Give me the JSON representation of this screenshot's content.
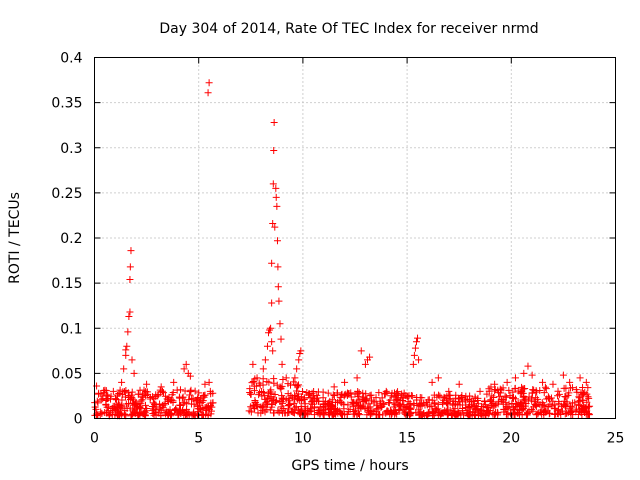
{
  "chart_data": {
    "type": "scatter",
    "title": "Day 304 of 2014, Rate Of TEC Index for receiver nrmd",
    "xlabel": "GPS time / hours",
    "ylabel": "ROTI / TECUs",
    "xlim": [
      0,
      25
    ],
    "ylim": [
      0,
      0.4
    ],
    "grid": true,
    "marker": "+",
    "color": "#ff0000",
    "x_ticks": [
      0,
      5,
      10,
      15,
      20,
      25
    ],
    "y_ticks": [
      0,
      0.05,
      0.1,
      0.15,
      0.2,
      0.25,
      0.3,
      0.35,
      0.4
    ],
    "x_tick_labels": [
      "0",
      "5",
      "10",
      "15",
      "20",
      "25"
    ],
    "y_tick_labels": [
      "0",
      "0.05",
      "0.1",
      "0.15",
      "0.2",
      "0.25",
      "0.3",
      "0.35",
      "0.4"
    ],
    "data_gaps_hours": [
      [
        5.7,
        7.4
      ]
    ],
    "series": [
      {
        "name": "ROTI",
        "points": [
          [
            0.1,
            0.036
          ],
          [
            0.2,
            0.028
          ],
          [
            0.4,
            0.025
          ],
          [
            0.6,
            0.022
          ],
          [
            1.3,
            0.04
          ],
          [
            1.4,
            0.055
          ],
          [
            1.5,
            0.07
          ],
          [
            1.5,
            0.076
          ],
          [
            1.55,
            0.08
          ],
          [
            1.6,
            0.096
          ],
          [
            1.65,
            0.113
          ],
          [
            1.7,
            0.118
          ],
          [
            1.7,
            0.154
          ],
          [
            1.72,
            0.168
          ],
          [
            1.75,
            0.186
          ],
          [
            1.8,
            0.065
          ],
          [
            1.9,
            0.05
          ],
          [
            2.5,
            0.038
          ],
          [
            3.2,
            0.035
          ],
          [
            3.8,
            0.04
          ],
          [
            4.3,
            0.055
          ],
          [
            4.4,
            0.06
          ],
          [
            4.5,
            0.05
          ],
          [
            4.6,
            0.047
          ],
          [
            5.3,
            0.038
          ],
          [
            5.5,
            0.04
          ],
          [
            5.45,
            0.361
          ],
          [
            5.5,
            0.372
          ],
          [
            7.6,
            0.06
          ],
          [
            7.8,
            0.045
          ],
          [
            8.1,
            0.055
          ],
          [
            8.2,
            0.065
          ],
          [
            8.3,
            0.08
          ],
          [
            8.35,
            0.095
          ],
          [
            8.4,
            0.098
          ],
          [
            8.45,
            0.1
          ],
          [
            8.5,
            0.085
          ],
          [
            8.55,
            0.075
          ],
          [
            8.5,
            0.128
          ],
          [
            8.5,
            0.172
          ],
          [
            8.55,
            0.216
          ],
          [
            8.58,
            0.26
          ],
          [
            8.6,
            0.297
          ],
          [
            8.62,
            0.328
          ],
          [
            8.65,
            0.212
          ],
          [
            8.7,
            0.255
          ],
          [
            8.72,
            0.245
          ],
          [
            8.75,
            0.235
          ],
          [
            8.78,
            0.197
          ],
          [
            8.8,
            0.168
          ],
          [
            8.82,
            0.146
          ],
          [
            8.85,
            0.13
          ],
          [
            8.9,
            0.105
          ],
          [
            8.95,
            0.088
          ],
          [
            9.0,
            0.06
          ],
          [
            9.2,
            0.045
          ],
          [
            9.7,
            0.055
          ],
          [
            9.8,
            0.065
          ],
          [
            9.85,
            0.072
          ],
          [
            9.9,
            0.075
          ],
          [
            10.5,
            0.025
          ],
          [
            11.5,
            0.035
          ],
          [
            12.0,
            0.04
          ],
          [
            12.6,
            0.045
          ],
          [
            12.8,
            0.075
          ],
          [
            13.0,
            0.06
          ],
          [
            13.1,
            0.065
          ],
          [
            13.2,
            0.068
          ],
          [
            14.0,
            0.03
          ],
          [
            14.5,
            0.028
          ],
          [
            15.0,
            0.025
          ],
          [
            15.3,
            0.06
          ],
          [
            15.35,
            0.07
          ],
          [
            15.4,
            0.078
          ],
          [
            15.45,
            0.085
          ],
          [
            15.5,
            0.089
          ],
          [
            15.55,
            0.065
          ],
          [
            16.2,
            0.04
          ],
          [
            16.5,
            0.045
          ],
          [
            17.0,
            0.03
          ],
          [
            17.5,
            0.038
          ],
          [
            18.0,
            0.025
          ],
          [
            18.5,
            0.03
          ],
          [
            19.2,
            0.038
          ],
          [
            19.8,
            0.04
          ],
          [
            20.2,
            0.045
          ],
          [
            20.6,
            0.05
          ],
          [
            20.8,
            0.058
          ],
          [
            21.0,
            0.048
          ],
          [
            21.5,
            0.04
          ],
          [
            22.0,
            0.038
          ],
          [
            22.5,
            0.048
          ],
          [
            22.8,
            0.04
          ],
          [
            23.3,
            0.045
          ],
          [
            23.6,
            0.04
          ]
        ],
        "baseline_segments": [
          {
            "x": [
              0.0,
              5.7
            ],
            "y_range": [
              0.003,
              0.032
            ]
          },
          {
            "x": [
              7.4,
              9.8
            ],
            "y_range": [
              0.006,
              0.045
            ]
          },
          {
            "x": [
              9.8,
              15.0
            ],
            "y_range": [
              0.004,
              0.03
            ]
          },
          {
            "x": [
              15.0,
              18.8
            ],
            "y_range": [
              0.003,
              0.026
            ]
          },
          {
            "x": [
              18.8,
              23.8
            ],
            "y_range": [
              0.004,
              0.035
            ]
          }
        ]
      }
    ]
  }
}
